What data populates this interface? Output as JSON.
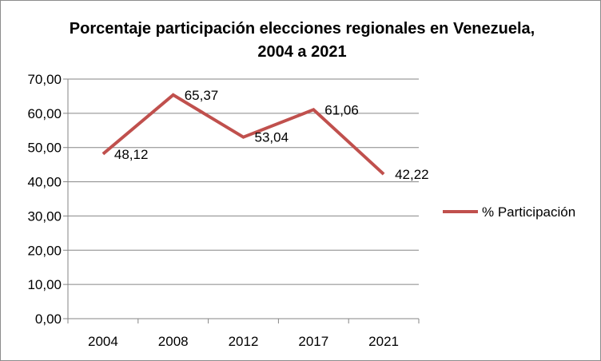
{
  "chart_data": {
    "type": "line",
    "title_line1": "Porcentaje participación elecciones regionales en Venezuela,",
    "title_line2": "2004 a 2021",
    "categories": [
      "2004",
      "2008",
      "2012",
      "2017",
      "2021"
    ],
    "series": [
      {
        "name": "% Participación",
        "values": [
          48.12,
          65.37,
          53.04,
          61.06,
          42.22
        ],
        "labels": [
          "48,12",
          "65,37",
          "53,04",
          "61,06",
          "42,22"
        ],
        "color": "#c0504d"
      }
    ],
    "y_ticks": [
      "0,00",
      "10,00",
      "20,00",
      "30,00",
      "40,00",
      "50,00",
      "60,00",
      "70,00"
    ],
    "ylim": [
      0,
      70
    ],
    "grid": true,
    "legend_position": "right"
  }
}
